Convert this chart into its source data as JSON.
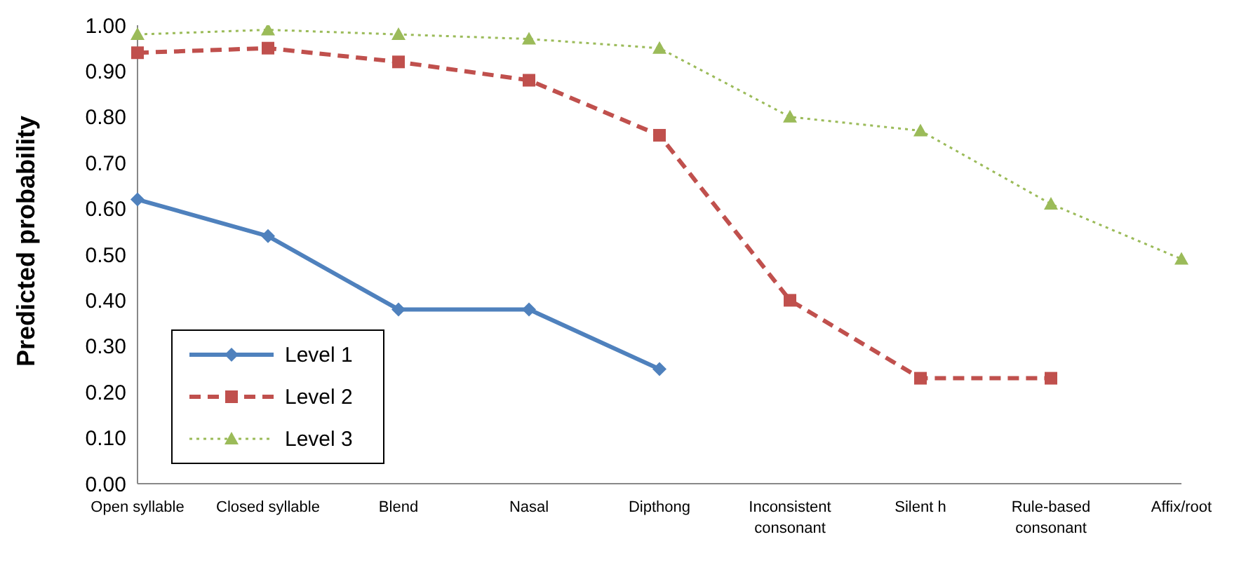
{
  "chart_data": {
    "type": "line",
    "ylabel": "Predicted probability",
    "categories": [
      "Open syllable",
      "Closed syllable",
      "Blend",
      "Nasal",
      "Dipthong",
      "Inconsistent consonant",
      "Silent h",
      "Rule-based consonant",
      "Affix/root"
    ],
    "series": [
      {
        "name": "Level 1",
        "color": "#4f81bd",
        "marker": "diamond",
        "line_style": "solid",
        "values": [
          0.62,
          0.54,
          0.38,
          0.38,
          0.25,
          null,
          null,
          null,
          null
        ]
      },
      {
        "name": "Level 2",
        "color": "#c0504d",
        "marker": "square",
        "line_style": "dashed",
        "values": [
          0.94,
          0.95,
          0.92,
          0.88,
          0.76,
          0.4,
          0.23,
          0.23,
          null
        ]
      },
      {
        "name": "Level 3",
        "color": "#9bbb59",
        "marker": "triangle",
        "line_style": "dotted",
        "values": [
          0.98,
          0.99,
          0.98,
          0.97,
          0.95,
          0.8,
          0.77,
          0.61,
          0.49
        ]
      }
    ],
    "ylim": [
      0,
      1
    ],
    "yticks": [
      {
        "value": 0,
        "label": "0.00"
      },
      {
        "value": 0.1,
        "label": "0.10"
      },
      {
        "value": 0.2,
        "label": "0.20"
      },
      {
        "value": 0.3,
        "label": "0.30"
      },
      {
        "value": 0.4,
        "label": "0.40"
      },
      {
        "value": 0.5,
        "label": "0.50"
      },
      {
        "value": 0.6,
        "label": "0.60"
      },
      {
        "value": 0.7,
        "label": "0.70"
      },
      {
        "value": 0.8,
        "label": "0.80"
      },
      {
        "value": 0.9,
        "label": "0.90"
      },
      {
        "value": 1,
        "label": "1.00"
      }
    ],
    "grid": false,
    "legend": "bottom left"
  }
}
